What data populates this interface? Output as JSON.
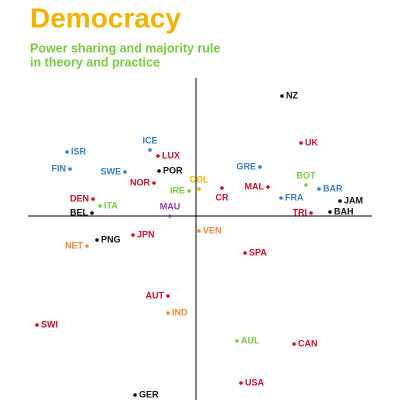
{
  "chart_data": {
    "type": "scatter",
    "title": "Democracy",
    "subtitle": [
      "Power sharing and majority rule",
      "in theory and practice"
    ],
    "title_color": "#f0b400",
    "subtitle_color": "#7ac943",
    "axis_color": "#000000",
    "xlim": [
      -168,
      176
    ],
    "ylim": [
      -184,
      138
    ],
    "labels": [
      "NZ",
      "UK",
      "ISR",
      "FIN",
      "ICE",
      "LUX",
      "SWE",
      "POR",
      "NOR",
      "COL",
      "GRE",
      "BOT",
      "IRE",
      "MAL",
      "CR",
      "BAR",
      "FRA",
      "JAM",
      "DEN",
      "ITA",
      "MAU",
      "TRI",
      "BAH",
      "BEL",
      "VEN",
      "PNG",
      "JPN",
      "NET",
      "SPA",
      "AUT",
      "IND",
      "SWI",
      "AUL",
      "CAN",
      "USA",
      "GER"
    ],
    "x": [
      86,
      105,
      -129,
      -126,
      -46,
      -38,
      -71,
      -37,
      -42,
      3,
      64,
      110,
      -7,
      72,
      26,
      123,
      85,
      144,
      -103,
      -96,
      -26,
      115,
      134,
      -104,
      3,
      -99,
      -63,
      -109,
      49,
      -28,
      -28,
      -159,
      41,
      98,
      45,
      -61
    ],
    "values": [
      120,
      73,
      64,
      47,
      66,
      60,
      44,
      45,
      33,
      27,
      49,
      31,
      25,
      29,
      28,
      27,
      18,
      15,
      17,
      10,
      0,
      3,
      4,
      3,
      -15,
      -24,
      -19,
      -30,
      -37,
      -80,
      -97,
      -109,
      -125,
      -128,
      -167,
      -179
    ],
    "colors": [
      "#111111",
      "#c8102e",
      "#3a7dc9",
      "#3a7dc9",
      "#3a7dc9",
      "#c8102e",
      "#3a7dc9",
      "#111111",
      "#c8102e",
      "#e8b800",
      "#3a7dc9",
      "#7ac943",
      "#7ac943",
      "#c8102e",
      "#c8102e",
      "#3a7dc9",
      "#3a7dc9",
      "#111111",
      "#c8102e",
      "#7ac943",
      "#9b3aa8",
      "#c8102e",
      "#111111",
      "#111111",
      "#f08a3c",
      "#111111",
      "#c8102e",
      "#f08a3c",
      "#c8102e",
      "#c8102e",
      "#f08a3c",
      "#c8102e",
      "#7ac943",
      "#c8102e",
      "#c8102e",
      "#111111"
    ]
  }
}
